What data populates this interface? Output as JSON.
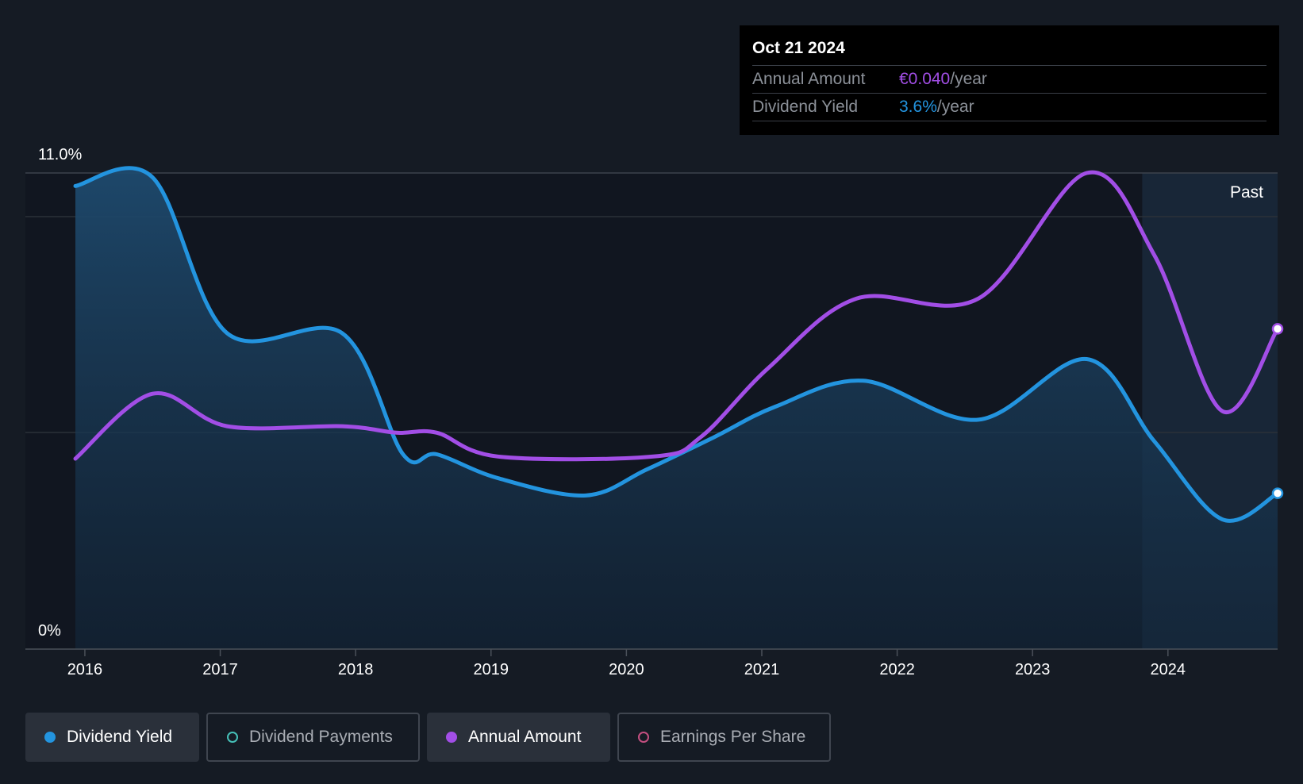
{
  "tooltip": {
    "date": "Oct 21 2024",
    "rows": [
      {
        "label": "Annual Amount",
        "value": "€0.040",
        "unit": "/year",
        "color": "#a24ee6"
      },
      {
        "label": "Dividend Yield",
        "value": "3.6%",
        "unit": "/year",
        "color": "#2394df"
      }
    ]
  },
  "past_label": "Past",
  "legend": [
    {
      "label": "Dividend Yield",
      "color": "#2394df",
      "filled": true,
      "active": true
    },
    {
      "label": "Dividend Payments",
      "color": "#46c0b8",
      "filled": false,
      "active": false
    },
    {
      "label": "Annual Amount",
      "color": "#a24ee6",
      "filled": true,
      "active": true
    },
    {
      "label": "Earnings Per Share",
      "color": "#c44f80",
      "filled": false,
      "active": false
    }
  ],
  "chart_data": {
    "type": "line",
    "x_ticks": [
      "2016",
      "2017",
      "2018",
      "2019",
      "2020",
      "2021",
      "2022",
      "2023",
      "2024"
    ],
    "ylim": [
      0,
      11.0
    ],
    "y_tick_labels": [
      "0%",
      "11.0%"
    ],
    "x_range": [
      2015.93,
      2024.81
    ],
    "past_start": 2023.81,
    "series": [
      {
        "name": "Dividend Yield",
        "color": "#2394df",
        "filled": true,
        "points": [
          [
            2015.93,
            10.7
          ],
          [
            2016.5,
            10.9
          ],
          [
            2017.05,
            7.3
          ],
          [
            2017.9,
            7.3
          ],
          [
            2018.35,
            4.5
          ],
          [
            2018.6,
            4.5
          ],
          [
            2019.05,
            3.95
          ],
          [
            2019.7,
            3.55
          ],
          [
            2020.15,
            4.15
          ],
          [
            2020.65,
            4.9
          ],
          [
            2021.1,
            5.6
          ],
          [
            2021.75,
            6.2
          ],
          [
            2022.6,
            5.3
          ],
          [
            2023.4,
            6.7
          ],
          [
            2023.9,
            4.8
          ],
          [
            2024.4,
            3.0
          ],
          [
            2024.81,
            3.6
          ]
        ]
      },
      {
        "name": "Annual Amount",
        "color": "#a24ee6",
        "filled": false,
        "points": [
          [
            2015.93,
            4.4
          ],
          [
            2016.5,
            5.9
          ],
          [
            2017.05,
            5.15
          ],
          [
            2017.9,
            5.15
          ],
          [
            2018.3,
            5.0
          ],
          [
            2018.6,
            5.0
          ],
          [
            2019.05,
            4.45
          ],
          [
            2020.2,
            4.45
          ],
          [
            2020.55,
            4.9
          ],
          [
            2021.05,
            6.5
          ],
          [
            2021.7,
            8.1
          ],
          [
            2022.6,
            8.1
          ],
          [
            2023.4,
            11.0
          ],
          [
            2023.9,
            9.1
          ],
          [
            2024.4,
            5.5
          ],
          [
            2024.81,
            7.4
          ]
        ]
      }
    ]
  }
}
